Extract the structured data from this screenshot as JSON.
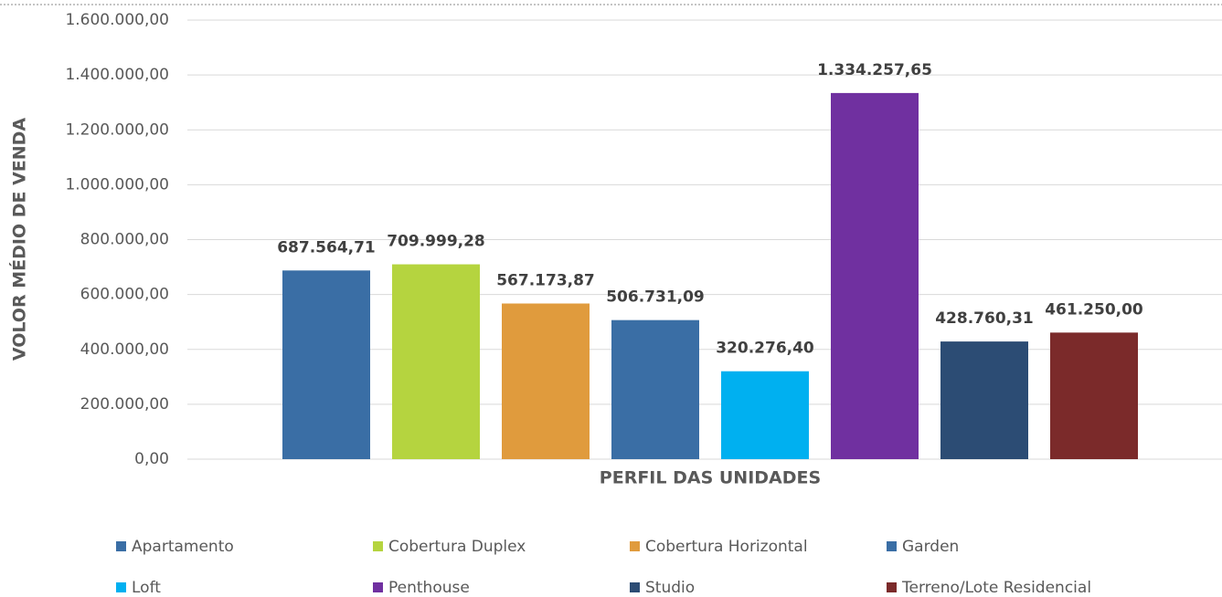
{
  "chart_data": {
    "type": "bar",
    "y_label": "VOLOR MÉDIO DE VENDA",
    "x_label": "PERFIL DAS UNIDADES",
    "ylim": [
      0,
      1600000
    ],
    "yticks": [
      {
        "value": 0,
        "label": "0,00"
      },
      {
        "value": 200000,
        "label": "200.000,00"
      },
      {
        "value": 400000,
        "label": "400.000,00"
      },
      {
        "value": 600000,
        "label": "600.000,00"
      },
      {
        "value": 800000,
        "label": "800.000,00"
      },
      {
        "value": 1000000,
        "label": "1.000.000,00"
      },
      {
        "value": 1200000,
        "label": "1.200.000,00"
      },
      {
        "value": 1400000,
        "label": "1.400.000,00"
      },
      {
        "value": 1600000,
        "label": "1.600.000,00"
      }
    ],
    "grid": true,
    "legend": "bottom",
    "series": [
      {
        "name": "Apartamento",
        "color": "#3a6ea5",
        "values": [
          687564.71
        ],
        "value_labels": [
          "687.564,71"
        ]
      },
      {
        "name": "Cobertura Duplex",
        "color": "#b5d43f",
        "values": [
          709999.28
        ],
        "value_labels": [
          "709.999,28"
        ]
      },
      {
        "name": "Cobertura Horizontal",
        "color": "#e09b3d",
        "values": [
          567173.87
        ],
        "value_labels": [
          "567.173,87"
        ]
      },
      {
        "name": "Garden",
        "color": "#3a6ea5",
        "values": [
          506731.09
        ],
        "value_labels": [
          "506.731,09"
        ]
      },
      {
        "name": "Loft",
        "color": "#00b0f0",
        "values": [
          320276.4
        ],
        "value_labels": [
          "320.276,40"
        ]
      },
      {
        "name": "Penthouse",
        "color": "#7030a0",
        "values": [
          1334257.65
        ],
        "value_labels": [
          "1.334.257,65"
        ]
      },
      {
        "name": "Studio",
        "color": "#2c4c74",
        "values": [
          428760.31
        ],
        "value_labels": [
          "428.760,31"
        ]
      },
      {
        "name": "Terreno/Lote Residencial",
        "color": "#7b2a2a",
        "values": [
          461250.0
        ],
        "value_labels": [
          "461.250,00"
        ]
      }
    ]
  }
}
